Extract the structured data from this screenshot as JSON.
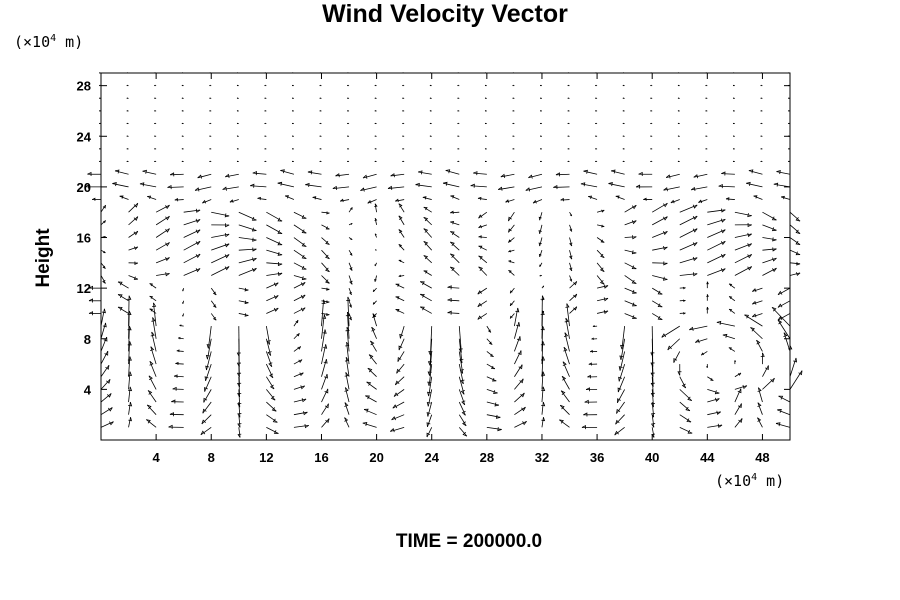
{
  "chart_data": {
    "type": "vector_field",
    "title": "Wind Velocity Vector",
    "ylabel": "Height",
    "xlabel": "",
    "x_unit": {
      "prefix": "(×10",
      "exp": "4",
      "suffix": " m)"
    },
    "y_unit": {
      "prefix": "(×10",
      "exp": "4",
      "suffix": " m)"
    },
    "xlim": [
      0,
      50
    ],
    "ylim": [
      0,
      29
    ],
    "x_ticks": [
      4,
      8,
      12,
      16,
      20,
      24,
      28,
      32,
      36,
      40,
      44,
      48
    ],
    "y_ticks": [
      4,
      8,
      12,
      16,
      20,
      24,
      28
    ],
    "grid": {
      "x_spacing": 2,
      "y_spacing": 1
    },
    "footer": "TIME = 200000.0"
  }
}
